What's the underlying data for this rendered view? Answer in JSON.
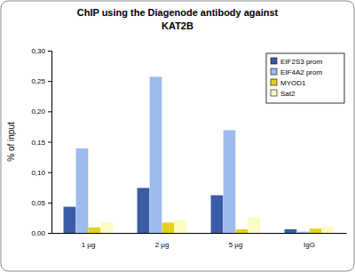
{
  "chart_data": {
    "type": "bar",
    "title": "ChIP using the Diagenode antibody against\nKAT2B",
    "y_label": "% of input",
    "categories": [
      "1 µg",
      "2 µg",
      "5 µg",
      "IgG"
    ],
    "series": [
      {
        "name": "EIF2S3 prom",
        "color": "#3a5ba6",
        "values": [
          0.043,
          0.074,
          0.062,
          0.006
        ]
      },
      {
        "name": "EIF4A2 prom",
        "color": "#9dbcec",
        "values": [
          0.139,
          0.257,
          0.169,
          0.002
        ]
      },
      {
        "name": "MYOD1",
        "color": "#e6cf1f",
        "values": [
          0.009,
          0.017,
          0.006,
          0.007
        ]
      },
      {
        "name": "Sat2",
        "color": "#fdfac4",
        "values": [
          0.018,
          0.021,
          0.026,
          0.011
        ]
      }
    ],
    "ylim": [
      0,
      0.3
    ],
    "yticks": [
      {
        "value": 0,
        "label": "0,00"
      },
      {
        "value": 0.05,
        "label": "0,05"
      },
      {
        "value": 0.1,
        "label": "0,10"
      },
      {
        "value": 0.15,
        "label": "0,15"
      },
      {
        "value": 0.2,
        "label": "0,20"
      },
      {
        "value": 0.25,
        "label": "0,25"
      },
      {
        "value": 0.3,
        "label": "0,30"
      }
    ],
    "grid": false,
    "legend": "top-right"
  }
}
